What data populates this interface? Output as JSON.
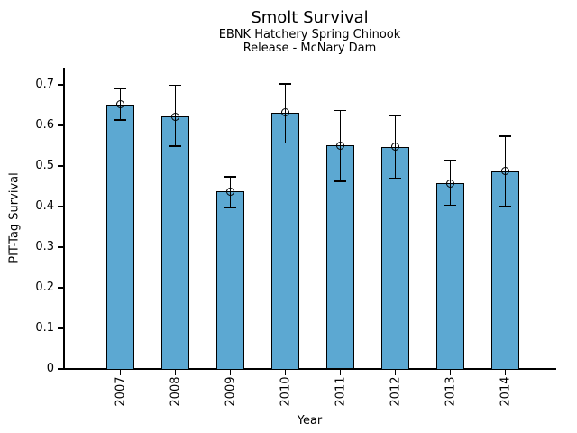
{
  "figure": {
    "background": "#ffffff",
    "text_color": "#000000"
  },
  "chart_data": {
    "type": "bar",
    "title": "Smolt Survival",
    "subtitle_lines": [
      "EBNK Hatchery Spring Chinook",
      "Release - McNary Dam"
    ],
    "xlabel": "Year",
    "ylabel": "PIT-Tag Survival",
    "categories": [
      "2007",
      "2008",
      "2009",
      "2010",
      "2011",
      "2012",
      "2013",
      "2014"
    ],
    "values": [
      0.65,
      0.62,
      0.435,
      0.63,
      0.548,
      0.545,
      0.455,
      0.485
    ],
    "error_low": [
      0.61,
      0.545,
      0.393,
      0.553,
      0.458,
      0.466,
      0.399,
      0.396
    ],
    "error_high": [
      0.69,
      0.698,
      0.473,
      0.702,
      0.636,
      0.623,
      0.513,
      0.573
    ],
    "error_marker": "open-circle",
    "yticks": [
      0,
      0.1,
      0.2,
      0.3,
      0.4,
      0.5,
      0.6,
      0.7
    ],
    "ytick_labels": [
      "0",
      "0.1",
      "0.2",
      "0.3",
      "0.4",
      "0.5",
      "0.6",
      "0.7"
    ],
    "ylim": [
      0,
      0.74
    ],
    "x_tick_rotation": 90,
    "grid": false,
    "legend": null,
    "bar_color": "#5CA8D2",
    "bar_edge_color": "#000000",
    "error_color": "#000000"
  }
}
